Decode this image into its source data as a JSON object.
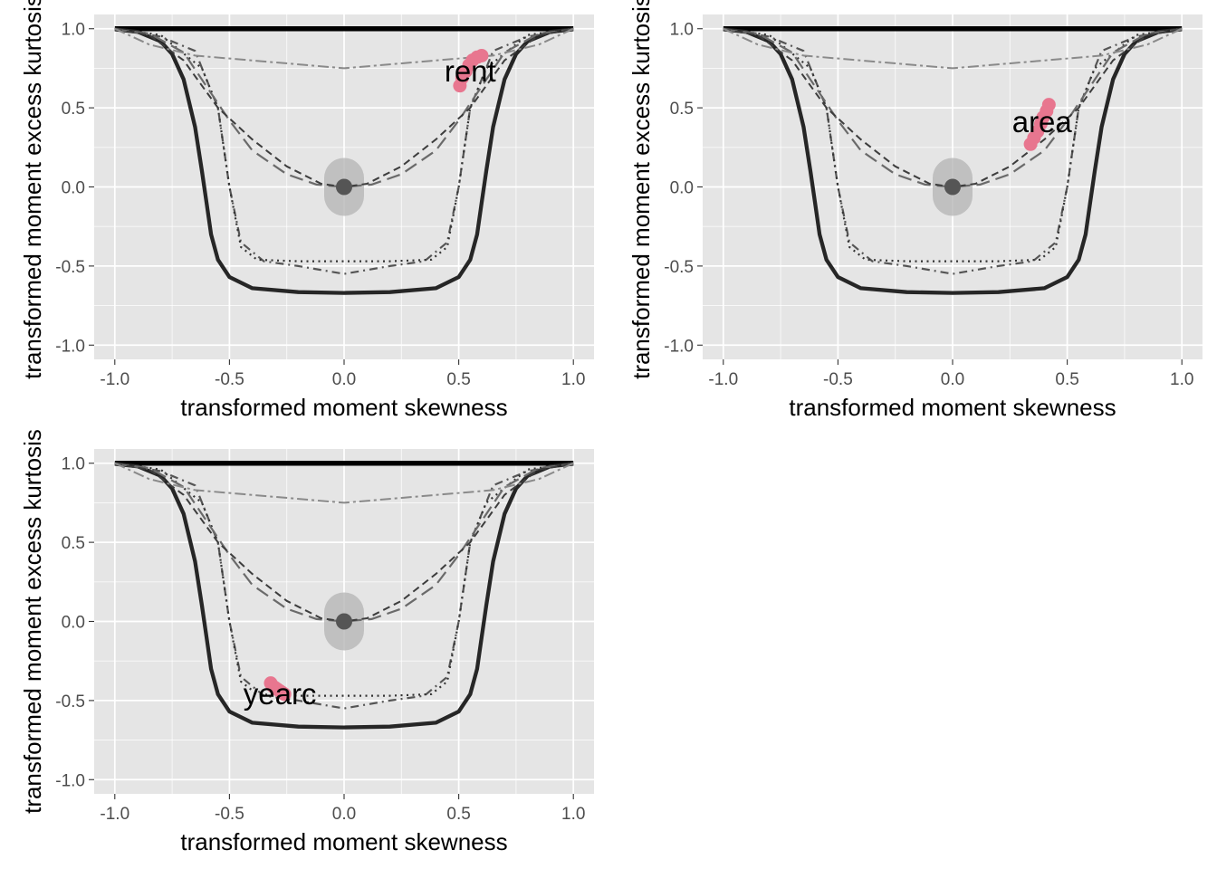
{
  "chart_data": [
    {
      "type": "line",
      "panel": "top-left",
      "xlabel": "transformed moment skewness",
      "ylabel": "transformed moment excess kurtosis",
      "xlim": [
        -1.0,
        1.0
      ],
      "ylim": [
        -1.0,
        1.0
      ],
      "x_ticks": [
        "-1.0",
        "-0.5",
        "0.0",
        "0.5",
        "1.0"
      ],
      "y_ticks": [
        "-1.0",
        "-0.5",
        "0.0",
        "0.5",
        "1.0"
      ],
      "grid": true,
      "point_label": "rent",
      "label_at": [
        0.55,
        0.73
      ],
      "points": [
        [
          0.505,
          0.64
        ],
        [
          0.515,
          0.69
        ],
        [
          0.53,
          0.73
        ],
        [
          0.545,
          0.77
        ],
        [
          0.56,
          0.8
        ],
        [
          0.58,
          0.82
        ],
        [
          0.6,
          0.83
        ]
      ]
    },
    {
      "type": "line",
      "panel": "top-right",
      "xlabel": "transformed moment skewness",
      "ylabel": "transformed moment excess kurtosis",
      "xlim": [
        -1.0,
        1.0
      ],
      "ylim": [
        -1.0,
        1.0
      ],
      "x_ticks": [
        "-1.0",
        "-0.5",
        "0.0",
        "0.5",
        "1.0"
      ],
      "y_ticks": [
        "-1.0",
        "-0.5",
        "0.0",
        "0.5",
        "1.0"
      ],
      "grid": true,
      "point_label": "area",
      "label_at": [
        0.39,
        0.41
      ],
      "points": [
        [
          0.34,
          0.27
        ],
        [
          0.355,
          0.31
        ],
        [
          0.37,
          0.35
        ],
        [
          0.385,
          0.4
        ],
        [
          0.395,
          0.44
        ],
        [
          0.41,
          0.48
        ],
        [
          0.42,
          0.52
        ]
      ]
    },
    {
      "type": "line",
      "panel": "bottom-left",
      "xlabel": "transformed moment skewness",
      "ylabel": "transformed moment excess kurtosis",
      "xlim": [
        -1.0,
        1.0
      ],
      "ylim": [
        -1.0,
        1.0
      ],
      "x_ticks": [
        "-1.0",
        "-0.5",
        "0.0",
        "0.5",
        "1.0"
      ],
      "y_ticks": [
        "-1.0",
        "-0.5",
        "0.0",
        "0.5",
        "1.0"
      ],
      "grid": true,
      "point_label": "yearc",
      "label_at": [
        -0.28,
        -0.46
      ],
      "points": [
        [
          -0.32,
          -0.39
        ],
        [
          -0.31,
          -0.41
        ],
        [
          -0.3,
          -0.42
        ],
        [
          -0.29,
          -0.43
        ],
        [
          -0.28,
          -0.44
        ],
        [
          -0.27,
          -0.45
        ],
        [
          -0.26,
          -0.46
        ]
      ]
    }
  ],
  "reference": {
    "center_point": [
      0.0,
      0.0
    ],
    "curves": [
      {
        "style": "upper-bound",
        "points": [
          [
            -1.0,
            1.0
          ],
          [
            1.0,
            1.0
          ]
        ]
      },
      {
        "style": "solid-thick",
        "points": [
          [
            -1.0,
            0.996
          ],
          [
            -0.9,
            0.98
          ],
          [
            -0.8,
            0.92
          ],
          [
            -0.75,
            0.84
          ],
          [
            -0.7,
            0.68
          ],
          [
            -0.65,
            0.38
          ],
          [
            -0.62,
            0.1
          ],
          [
            -0.6,
            -0.1
          ],
          [
            -0.58,
            -0.3
          ],
          [
            -0.55,
            -0.46
          ],
          [
            -0.5,
            -0.57
          ],
          [
            -0.4,
            -0.64
          ],
          [
            -0.2,
            -0.665
          ],
          [
            0.0,
            -0.67
          ],
          [
            0.2,
            -0.665
          ],
          [
            0.4,
            -0.64
          ],
          [
            0.5,
            -0.57
          ],
          [
            0.55,
            -0.46
          ],
          [
            0.58,
            -0.3
          ],
          [
            0.6,
            -0.1
          ],
          [
            0.62,
            0.1
          ],
          [
            0.65,
            0.38
          ],
          [
            0.7,
            0.68
          ],
          [
            0.75,
            0.84
          ],
          [
            0.8,
            0.92
          ],
          [
            0.9,
            0.98
          ],
          [
            1.0,
            0.996
          ]
        ]
      },
      {
        "style": "dashdot",
        "points": [
          [
            -1.0,
            1.0
          ],
          [
            -0.8,
            0.95
          ],
          [
            -0.65,
            0.86
          ],
          [
            -0.55,
            0.5
          ],
          [
            -0.5,
            0.0
          ],
          [
            -0.45,
            -0.35
          ],
          [
            -0.35,
            -0.47
          ],
          [
            -0.2,
            -0.5
          ],
          [
            0.0,
            -0.55
          ],
          [
            0.2,
            -0.5
          ],
          [
            0.35,
            -0.47
          ],
          [
            0.45,
            -0.35
          ],
          [
            0.5,
            0.0
          ],
          [
            0.55,
            0.5
          ],
          [
            0.65,
            0.86
          ],
          [
            0.8,
            0.95
          ],
          [
            1.0,
            1.0
          ]
        ]
      },
      {
        "style": "dotted",
        "points": [
          [
            -1.0,
            1.0
          ],
          [
            -0.8,
            0.96
          ],
          [
            -0.62,
            0.75
          ],
          [
            -0.55,
            0.5
          ],
          [
            -0.5,
            0.0
          ],
          [
            -0.45,
            -0.38
          ],
          [
            -0.38,
            -0.46
          ],
          [
            -0.2,
            -0.47
          ],
          [
            0.0,
            -0.47
          ],
          [
            0.2,
            -0.47
          ],
          [
            0.38,
            -0.46
          ],
          [
            0.45,
            -0.38
          ],
          [
            0.5,
            0.0
          ],
          [
            0.55,
            0.5
          ],
          [
            0.62,
            0.75
          ],
          [
            0.8,
            0.96
          ],
          [
            1.0,
            1.0
          ]
        ]
      },
      {
        "style": "longdash",
        "points": [
          [
            -1.0,
            0.995
          ],
          [
            -0.85,
            0.97
          ],
          [
            -0.7,
            0.85
          ],
          [
            -0.5,
            0.42
          ],
          [
            -0.4,
            0.23
          ],
          [
            -0.25,
            0.08
          ],
          [
            -0.12,
            0.015
          ],
          [
            0.0,
            0.0
          ],
          [
            0.12,
            0.015
          ],
          [
            0.25,
            0.08
          ],
          [
            0.4,
            0.23
          ],
          [
            0.5,
            0.42
          ],
          [
            0.7,
            0.85
          ],
          [
            0.85,
            0.97
          ],
          [
            1.0,
            0.995
          ]
        ]
      },
      {
        "style": "shortdash",
        "points": [
          [
            -1.0,
            0.995
          ],
          [
            -0.85,
            0.96
          ],
          [
            -0.7,
            0.8
          ],
          [
            -0.55,
            0.5
          ],
          [
            -0.4,
            0.3
          ],
          [
            -0.25,
            0.13
          ],
          [
            -0.1,
            0.02
          ],
          [
            0.0,
            0.0
          ],
          [
            0.1,
            0.02
          ],
          [
            0.25,
            0.13
          ],
          [
            0.4,
            0.3
          ],
          [
            0.55,
            0.5
          ],
          [
            0.7,
            0.8
          ],
          [
            0.85,
            0.96
          ],
          [
            1.0,
            0.995
          ]
        ]
      },
      {
        "style": "twodash",
        "points": [
          [
            -1.0,
            1.0
          ],
          [
            -0.85,
            0.9
          ],
          [
            -0.65,
            0.83
          ],
          [
            0.0,
            0.75
          ],
          [
            0.65,
            0.83
          ],
          [
            0.85,
            0.9
          ],
          [
            1.0,
            1.0
          ]
        ]
      }
    ]
  }
}
